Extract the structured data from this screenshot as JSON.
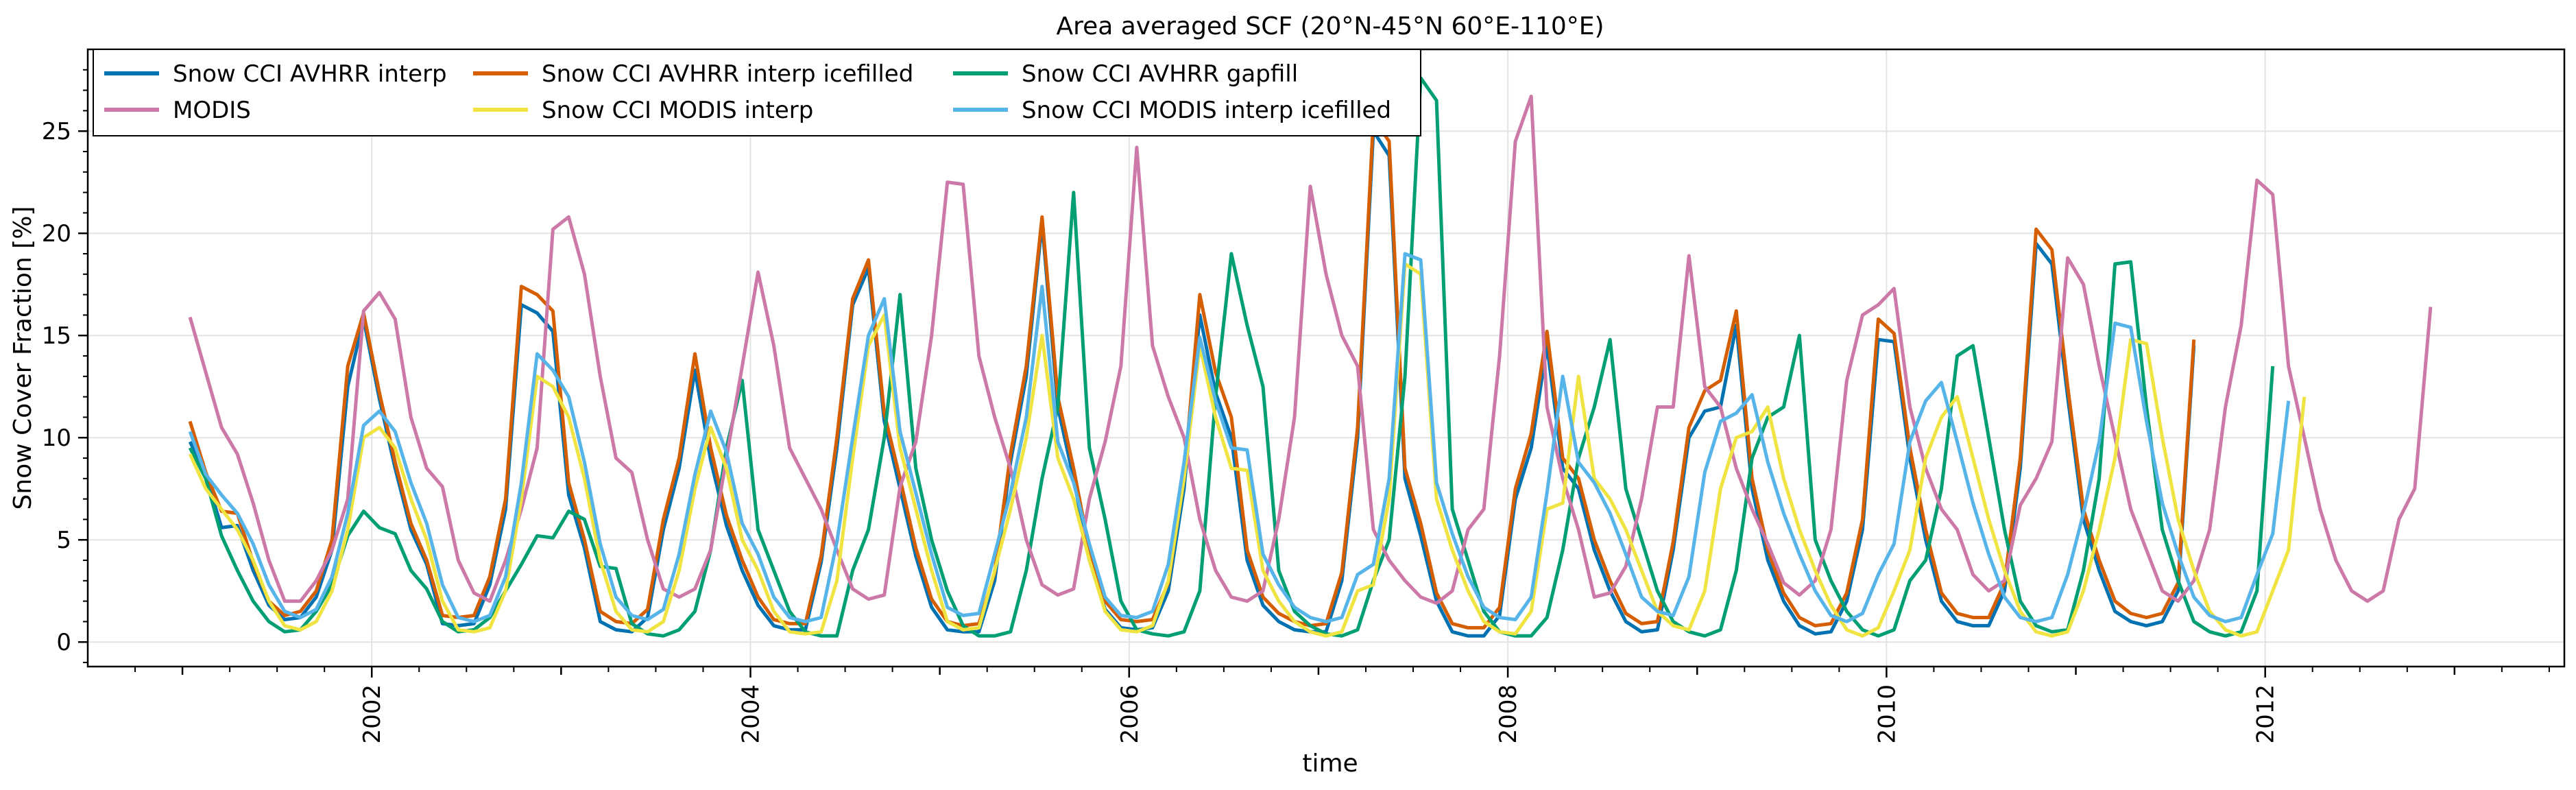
{
  "chart_data": {
    "type": "line",
    "title": "Area averaged SCF (20°N-45°N 60°E-110°E)",
    "xlabel": "time",
    "ylabel": "Snow Cover Fraction [%]",
    "xlim": [
      2000.5,
      2013.58
    ],
    "ylim": [
      -1.2,
      29.0
    ],
    "x_ticks": [
      2002,
      2004,
      2006,
      2008,
      2010,
      2012
    ],
    "x_tick_labels": [
      "2002",
      "2004",
      "2006",
      "2008",
      "2010",
      "2012"
    ],
    "y_ticks": [
      0,
      5,
      10,
      15,
      20,
      25
    ],
    "y_tick_labels": [
      "0",
      "5",
      "10",
      "15",
      "20",
      "25"
    ],
    "grid": true,
    "legend_position": "top-left",
    "series": [
      {
        "name": "Snow CCI AVHRR interp",
        "color": "#0072b2",
        "values": [
          [
            9.8,
            8.2,
            5.6,
            5.7,
            3.5,
            1.8,
            1.1,
            1.2,
            2.2,
            4.5,
            12.5,
            15.8,
            11.9,
            8.5,
            5.5,
            3.8,
            0.9,
            0.8,
            0.9,
            2.8,
            6.5,
            16.5,
            16.1,
            15.2,
            7.2,
            4.6,
            1.0,
            0.6,
            0.5,
            1.2
          ],
          [
            5.5,
            8.5,
            13.3,
            8.9,
            5.7,
            3.5,
            1.8,
            0.8,
            0.6,
            0.6,
            3.9,
            9.5,
            16.5,
            18.3,
            10.8,
            7.5,
            4.2,
            1.7,
            0.6,
            0.5,
            0.5,
            3.0,
            8.8,
            13.0,
            20.5,
            11.5,
            8.0,
            4.0,
            1.6,
            0.7
          ],
          [
            0.6,
            0.7,
            2.5,
            7.5,
            16.0,
            12.2,
            10.0,
            4.0,
            1.8,
            1.0,
            0.6,
            0.5,
            0.5,
            3.0,
            10.0,
            25.0,
            23.8,
            8.0,
            5.2,
            2.0,
            0.5,
            0.3,
            0.3,
            1.3,
            7.0,
            9.5,
            14.5,
            8.5,
            7.5,
            4.5
          ],
          [
            2.5,
            1.0,
            0.5,
            0.6,
            4.5,
            10.0,
            11.3,
            11.5,
            15.5,
            7.5,
            4.0,
            2.0,
            0.8,
            0.4,
            0.5,
            2.0,
            5.5,
            14.8,
            14.7,
            9.0,
            5.0,
            2.0,
            1.0,
            0.8,
            0.8,
            2.5,
            8.5,
            19.5,
            18.5,
            12.0
          ],
          [
            6.0,
            3.5,
            1.5,
            1.0,
            0.8,
            1.0,
            2.5,
            14.5
          ]
        ]
      },
      {
        "name": "Snow CCI AVHRR interp icefilled",
        "color": "#d55e00",
        "values": [
          [
            10.8,
            8.3,
            6.4,
            6.3,
            3.9,
            2.0,
            1.3,
            1.5,
            2.5,
            5.0,
            13.5,
            16.1,
            12.2,
            8.8,
            5.8,
            4.0,
            1.3,
            1.2,
            1.3,
            3.2,
            7.0,
            17.4,
            17.0,
            16.2,
            7.8,
            5.0,
            1.5,
            1.0,
            0.9,
            1.6
          ],
          [
            6.0,
            9.0,
            14.1,
            9.5,
            6.2,
            4.0,
            2.2,
            1.1,
            0.9,
            0.9,
            4.2,
            10.0,
            16.8,
            18.7,
            11.2,
            8.0,
            4.6,
            2.1,
            1.0,
            0.8,
            0.9,
            3.4,
            9.2,
            13.5,
            20.8,
            12.0,
            8.5,
            4.5,
            2.0,
            1.1
          ],
          [
            1.0,
            1.1,
            2.9,
            8.0,
            17.0,
            13.2,
            11.0,
            4.5,
            2.2,
            1.4,
            1.0,
            0.8,
            0.9,
            3.4,
            10.5,
            25.6,
            24.5,
            8.5,
            5.8,
            2.4,
            0.9,
            0.7,
            0.7,
            1.7,
            7.5,
            10.2,
            15.2,
            9.0,
            8.0,
            5.0
          ],
          [
            3.0,
            1.4,
            0.9,
            1.0,
            4.9,
            10.5,
            12.3,
            12.8,
            16.2,
            8.0,
            4.5,
            2.4,
            1.2,
            0.8,
            0.9,
            2.4,
            6.0,
            15.8,
            15.1,
            9.5,
            5.5,
            2.4,
            1.4,
            1.2,
            1.2,
            2.9,
            9.0,
            20.2,
            19.2,
            12.5
          ],
          [
            6.5,
            4.0,
            2.0,
            1.4,
            1.2,
            1.4,
            2.9,
            14.8
          ]
        ]
      },
      {
        "name": "Snow CCI AVHRR gapfill",
        "color": "#009e73",
        "values": [
          [
            9.5,
            8.0,
            5.2,
            3.5,
            2.0,
            1.0,
            0.5,
            0.6,
            1.5,
            2.8,
            5.2,
            6.4,
            5.6,
            5.3,
            3.5,
            2.6,
            1.0,
            0.5,
            0.6,
            1.2,
            2.5,
            3.8,
            5.2,
            5.1,
            6.4,
            6.0,
            3.7,
            3.6,
            0.9,
            0.4
          ],
          [
            0.3,
            0.6,
            1.5,
            4.5,
            9.5,
            12.8,
            5.5,
            3.5,
            1.5,
            0.5,
            0.3,
            0.3,
            3.5,
            5.5,
            10.0,
            17.0,
            8.5,
            5.0,
            2.5,
            0.8,
            0.3,
            0.3,
            0.5,
            3.5,
            8.0,
            11.5,
            22.0,
            9.5,
            6.0,
            2.0
          ],
          [
            0.6,
            0.4,
            0.3,
            0.5,
            2.5,
            12.0,
            19.0,
            15.5,
            12.5,
            3.5,
            1.5,
            0.8,
            0.4,
            0.3,
            0.6,
            3.0,
            5.0,
            13.0,
            27.6,
            26.5,
            6.5,
            4.0,
            1.5,
            0.5,
            0.3,
            0.3,
            1.2,
            4.5,
            9.0,
            11.5
          ],
          [
            14.8,
            7.5,
            5.0,
            2.5,
            1.0,
            0.5,
            0.3,
            0.6,
            3.5,
            9.0,
            11.0,
            11.5,
            15.0,
            5.0,
            3.0,
            1.5,
            0.6,
            0.3,
            0.6,
            3.0,
            4.0,
            7.5,
            14.0,
            14.5,
            10.0,
            5.5,
            2.0,
            0.8,
            0.5,
            0.6
          ],
          [
            3.5,
            8.0,
            18.5,
            18.6,
            11.5,
            5.5,
            3.0,
            1.0,
            0.5,
            0.3,
            0.5,
            2.5,
            13.5
          ]
        ]
      },
      {
        "name": "MODIS",
        "color": "#cc79a7",
        "values": [
          [
            15.9,
            13.2,
            10.5,
            9.2,
            6.8,
            4.0,
            2.0,
            2.0,
            3.0,
            4.5,
            7.0,
            16.2,
            17.1,
            15.8,
            11.0,
            8.5,
            7.6,
            4.0,
            2.4,
            2.0,
            4.0,
            6.5,
            9.5,
            20.2,
            20.8,
            18.0,
            13.0,
            9.0,
            8.3,
            5.0
          ],
          [
            2.6,
            2.2,
            2.6,
            4.5,
            9.0,
            13.5,
            18.1,
            14.5,
            9.5,
            8.0,
            6.5,
            4.5,
            2.6,
            2.1,
            2.3,
            7.6,
            9.8,
            15.0,
            22.5,
            22.4,
            14.0,
            11.0,
            8.5,
            5.0,
            2.8,
            2.3,
            2.6,
            7.0,
            9.8,
            13.5
          ],
          [
            24.2,
            14.5,
            12.0,
            10.0,
            6.0,
            3.5,
            2.2,
            2.0,
            2.5,
            6.0,
            11.0,
            22.3,
            18.0,
            15.0,
            13.5,
            5.5,
            4.0,
            3.0,
            2.2,
            1.9,
            2.5,
            5.5,
            6.5,
            14.0,
            24.5,
            26.7,
            11.5,
            8.0,
            5.5,
            2.2
          ],
          [
            2.4,
            3.7,
            7.0,
            11.5,
            11.5,
            18.9,
            12.5,
            11.5,
            8.5,
            6.5,
            4.8,
            2.9,
            2.3,
            3.0,
            5.5,
            12.8,
            16.0,
            16.5,
            17.3,
            11.5,
            8.5,
            6.5,
            5.5,
            3.3,
            2.5,
            3.0,
            6.7,
            8.0,
            9.8,
            18.8
          ],
          [
            17.5,
            13.5,
            10.0,
            6.5,
            4.5,
            2.5,
            2.0,
            3.0,
            5.5,
            11.5,
            15.5,
            22.6,
            21.9,
            13.5,
            10.0,
            6.5,
            4.0,
            2.5,
            2.0,
            2.5,
            6.0,
            7.5,
            16.4
          ]
        ]
      },
      {
        "name": "Snow CCI MODIS interp",
        "color": "#f0e442",
        "values": [
          [
            9.2,
            7.5,
            6.5,
            5.5,
            4.0,
            2.0,
            0.8,
            0.6,
            1.0,
            2.5,
            5.5,
            10.0,
            10.5,
            9.5,
            7.0,
            5.0,
            2.0,
            0.6,
            0.5,
            0.7,
            2.5,
            7.0,
            13.0,
            12.5,
            11.0,
            8.0,
            4.0,
            1.5,
            0.6,
            0.5
          ],
          [
            1.0,
            3.5,
            7.5,
            10.5,
            8.5,
            5.0,
            3.5,
            1.5,
            0.5,
            0.4,
            0.5,
            3.0,
            9.0,
            14.5,
            16.0,
            9.5,
            6.5,
            3.5,
            1.0,
            0.6,
            0.7,
            3.5,
            6.5,
            10.0,
            15.0,
            9.0,
            7.0,
            4.0,
            1.5,
            0.6
          ],
          [
            0.5,
            0.8,
            3.0,
            8.0,
            14.5,
            11.0,
            8.5,
            8.4,
            3.5,
            2.0,
            1.0,
            0.5,
            0.3,
            0.5,
            2.5,
            2.8,
            7.0,
            18.5,
            18.0,
            7.0,
            4.5,
            2.5,
            1.0,
            0.5,
            0.4,
            1.5,
            6.5,
            6.8,
            13.0,
            8.0
          ],
          [
            7.0,
            5.5,
            3.5,
            1.5,
            0.8,
            0.6,
            2.5,
            7.5,
            10.0,
            10.3,
            11.5,
            8.0,
            5.5,
            3.5,
            1.8,
            0.6,
            0.3,
            0.7,
            2.5,
            4.5,
            9.0,
            11.0,
            12.0,
            9.0,
            6.0,
            3.5,
            1.5,
            0.5,
            0.3,
            0.5
          ],
          [
            2.5,
            5.5,
            9.0,
            14.8,
            14.6,
            10.0,
            6.0,
            3.5,
            1.5,
            0.6,
            0.3,
            0.5,
            2.5,
            4.5,
            12.0
          ]
        ]
      },
      {
        "name": "Snow CCI MODIS interp icefilled",
        "color": "#56b4e9",
        "values": [
          [
            10.3,
            8.2,
            7.2,
            6.3,
            4.8,
            2.8,
            1.5,
            1.2,
            1.6,
            3.2,
            6.3,
            10.6,
            11.3,
            10.3,
            7.8,
            5.8,
            2.8,
            1.2,
            1.0,
            1.3,
            3.2,
            7.8,
            14.1,
            13.3,
            12.0,
            8.8,
            4.8,
            2.2,
            1.3,
            1.1
          ],
          [
            1.6,
            4.3,
            8.2,
            11.3,
            9.3,
            5.8,
            4.3,
            2.2,
            1.2,
            1.0,
            1.2,
            4.9,
            10.0,
            15.0,
            16.8,
            10.3,
            7.3,
            4.3,
            1.7,
            1.3,
            1.4,
            4.3,
            7.3,
            11.0,
            17.4,
            9.8,
            7.8,
            4.8,
            2.2,
            1.3
          ],
          [
            1.2,
            1.5,
            3.8,
            8.8,
            14.9,
            11.8,
            9.5,
            9.4,
            4.3,
            2.8,
            1.7,
            1.2,
            1.0,
            1.2,
            3.3,
            3.8,
            8.0,
            19.0,
            18.7,
            7.8,
            5.3,
            3.2,
            1.7,
            1.2,
            1.1,
            2.2,
            7.3,
            13.0,
            8.8,
            7.8
          ],
          [
            6.3,
            4.3,
            2.2,
            1.5,
            1.3,
            3.2,
            8.3,
            10.8,
            11.2,
            12.1,
            8.8,
            6.3,
            4.3,
            2.5,
            1.3,
            1.0,
            1.4,
            3.3,
            4.8,
            9.8,
            11.8,
            12.7,
            9.8,
            6.8,
            4.3,
            2.2,
            1.2,
            1.0,
            1.2,
            3.3
          ],
          [
            6.3,
            9.8,
            15.6,
            15.4,
            10.8,
            6.8,
            4.3,
            2.2,
            1.3,
            1.0,
            1.2,
            3.3,
            5.3,
            11.8
          ]
        ]
      }
    ]
  }
}
